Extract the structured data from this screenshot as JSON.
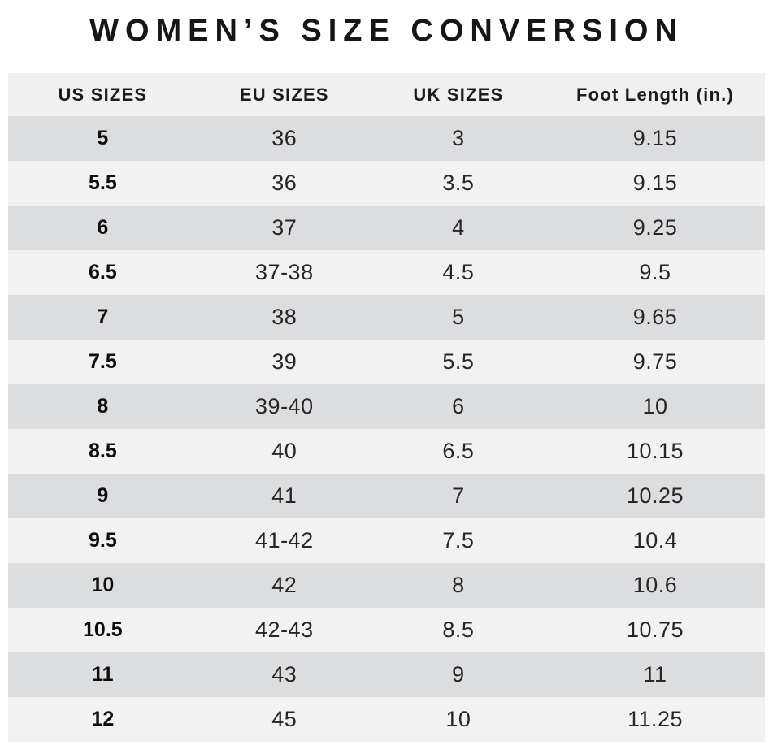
{
  "title": "WOMEN’S SIZE CONVERSION",
  "chart_data": {
    "type": "table",
    "title": "WOMEN’S SIZE CONVERSION",
    "columns": [
      "US SIZES",
      "EU SIZES",
      "UK SIZES",
      "Foot Length (in.)"
    ],
    "rows": [
      [
        "5",
        "36",
        "3",
        "9.15"
      ],
      [
        "5.5",
        "36",
        "3.5",
        "9.15"
      ],
      [
        "6",
        "37",
        "4",
        "9.25"
      ],
      [
        "6.5",
        "37-38",
        "4.5",
        "9.5"
      ],
      [
        "7",
        "38",
        "5",
        "9.65"
      ],
      [
        "7.5",
        "39",
        "5.5",
        "9.75"
      ],
      [
        "8",
        "39-40",
        "6",
        "10"
      ],
      [
        "8.5",
        "40",
        "6.5",
        "10.15"
      ],
      [
        "9",
        "41",
        "7",
        "10.25"
      ],
      [
        "9.5",
        "41-42",
        "7.5",
        "10.4"
      ],
      [
        "10",
        "42",
        "8",
        "10.6"
      ],
      [
        "10.5",
        "42-43",
        "8.5",
        "10.75"
      ],
      [
        "11",
        "43",
        "9",
        "11"
      ],
      [
        "12",
        "45",
        "10",
        "11.25"
      ]
    ]
  },
  "colors": {
    "header_bg": "#f1f0f0",
    "row_dark_bg": "#dcdddf",
    "row_light_bg": "#f3f2f2",
    "title_text": "#161616",
    "cell_text": "#262626"
  }
}
